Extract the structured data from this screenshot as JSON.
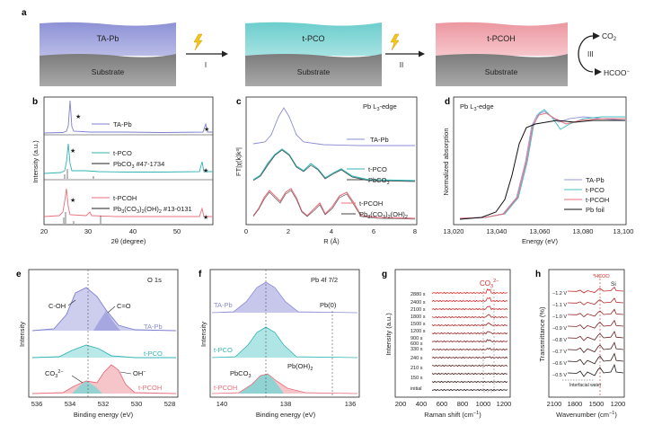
{
  "panels": {
    "a": {
      "label": "a",
      "states": [
        "TA-Pb",
        "t-PCO",
        "t-PCOH"
      ],
      "substrate": "Substrate",
      "steps": [
        "I",
        "II",
        "III"
      ],
      "co2": "CO",
      "co2_sub": "2",
      "hcoo": "HCOO",
      "hcoo_sup": "−",
      "colors": {
        "ta_pb": "#9b9fd8",
        "t_pco": "#7fd4d4",
        "t_pcoh": "#f0a8ae",
        "substrate": "#8c8c8c",
        "bolt": "#f5c518"
      }
    },
    "b": {
      "label": "b",
      "ylabel": "Intensity (a.u.)",
      "xlabel": "2θ (degree)",
      "xticks": [
        "20",
        "30",
        "40",
        "50"
      ],
      "legend": [
        "TA-Pb",
        "t-PCO",
        "PbCO",
        "3",
        " #47-1734",
        "t-PCOH",
        "Pb",
        "3",
        "(CO",
        "3",
        ")",
        "2",
        "(OH)",
        "2",
        " #13-0131"
      ],
      "star": "★"
    },
    "c": {
      "label": "c",
      "title": "Pb L",
      "title_sub": "3",
      "title_rest": "-edge",
      "ylabel": "FT|χ(k)k³|",
      "xlabel": "R (Å)",
      "xticks": [
        "0",
        "2",
        "4",
        "6",
        "8"
      ],
      "legend": [
        "TA-Pb",
        "t-PCO",
        "PbCO",
        "3",
        "t-PCOH",
        "Pb",
        "3",
        "(CO",
        "3",
        ")",
        "2",
        "(OH)",
        "2"
      ]
    },
    "d": {
      "label": "d",
      "title": "Pb L",
      "title_sub": "3",
      "title_rest": "-edge",
      "ylabel": "Normalized absorption",
      "xlabel": "Energy (eV)",
      "xticks": [
        "13,020",
        "13,040",
        "13,060",
        "13,080",
        "13,100"
      ],
      "legend": [
        "TA-Pb",
        "t-PCO",
        "t-PCOH",
        "Pb foil"
      ]
    },
    "e": {
      "label": "e",
      "title": "O 1s",
      "ylabel": "Intensity",
      "xlabel": "Binding energy (eV)",
      "xticks": [
        "536",
        "534",
        "532",
        "530",
        "528"
      ],
      "annotations": [
        "C-OH",
        "C=O",
        "TA-Pb",
        "t-PCO",
        "CO",
        "3",
        "2−",
        "OH",
        "−",
        "t-PCOH"
      ]
    },
    "f": {
      "label": "f",
      "title": "Pb 4f 7/2",
      "ylabel": "Intensity",
      "xlabel": "Binding energy (eV)",
      "xticks": [
        "140",
        "138",
        "136"
      ],
      "annotations": [
        "TA-Pb",
        "Pb(0)",
        "t-PCO",
        "PbCO",
        "3",
        "Pb(OH)",
        "2",
        "t-PCOH"
      ]
    },
    "g": {
      "label": "g",
      "ylabel": "Intensity (a.u.)",
      "xlabel": "Raman shift (cm",
      "xlabel_sup": "−1",
      "xlabel_end": ")",
      "xticks": [
        "200",
        "400",
        "600",
        "800",
        "1000",
        "1200"
      ],
      "co3": "CO",
      "co3_sub": "3",
      "co3_sup": "2−",
      "times": [
        "2880 s",
        "2400 s",
        "2100 s",
        "1800 s",
        "1500 s",
        "1200 s",
        "900 s",
        "600 s",
        "330 s",
        "240 s",
        "210 s",
        "150 s",
        "initial"
      ]
    },
    "h": {
      "label": "h",
      "ylabel": "Transmittance (%)",
      "xlabel": "Wavenumber (cm",
      "xlabel_sup": "−1",
      "xlabel_end": ")",
      "xticks": [
        "2100",
        "1800",
        "1500",
        "1200"
      ],
      "hcoo": "*HCOO",
      "si": "Si",
      "potentials": [
        "−1.2 V",
        "−1.1 V",
        "−1.0 V",
        "−0.9 V",
        "−0.8 V",
        "−0.7 V",
        "−0.6 V",
        "−0.5 V"
      ],
      "water": "Interfacial water"
    }
  }
}
